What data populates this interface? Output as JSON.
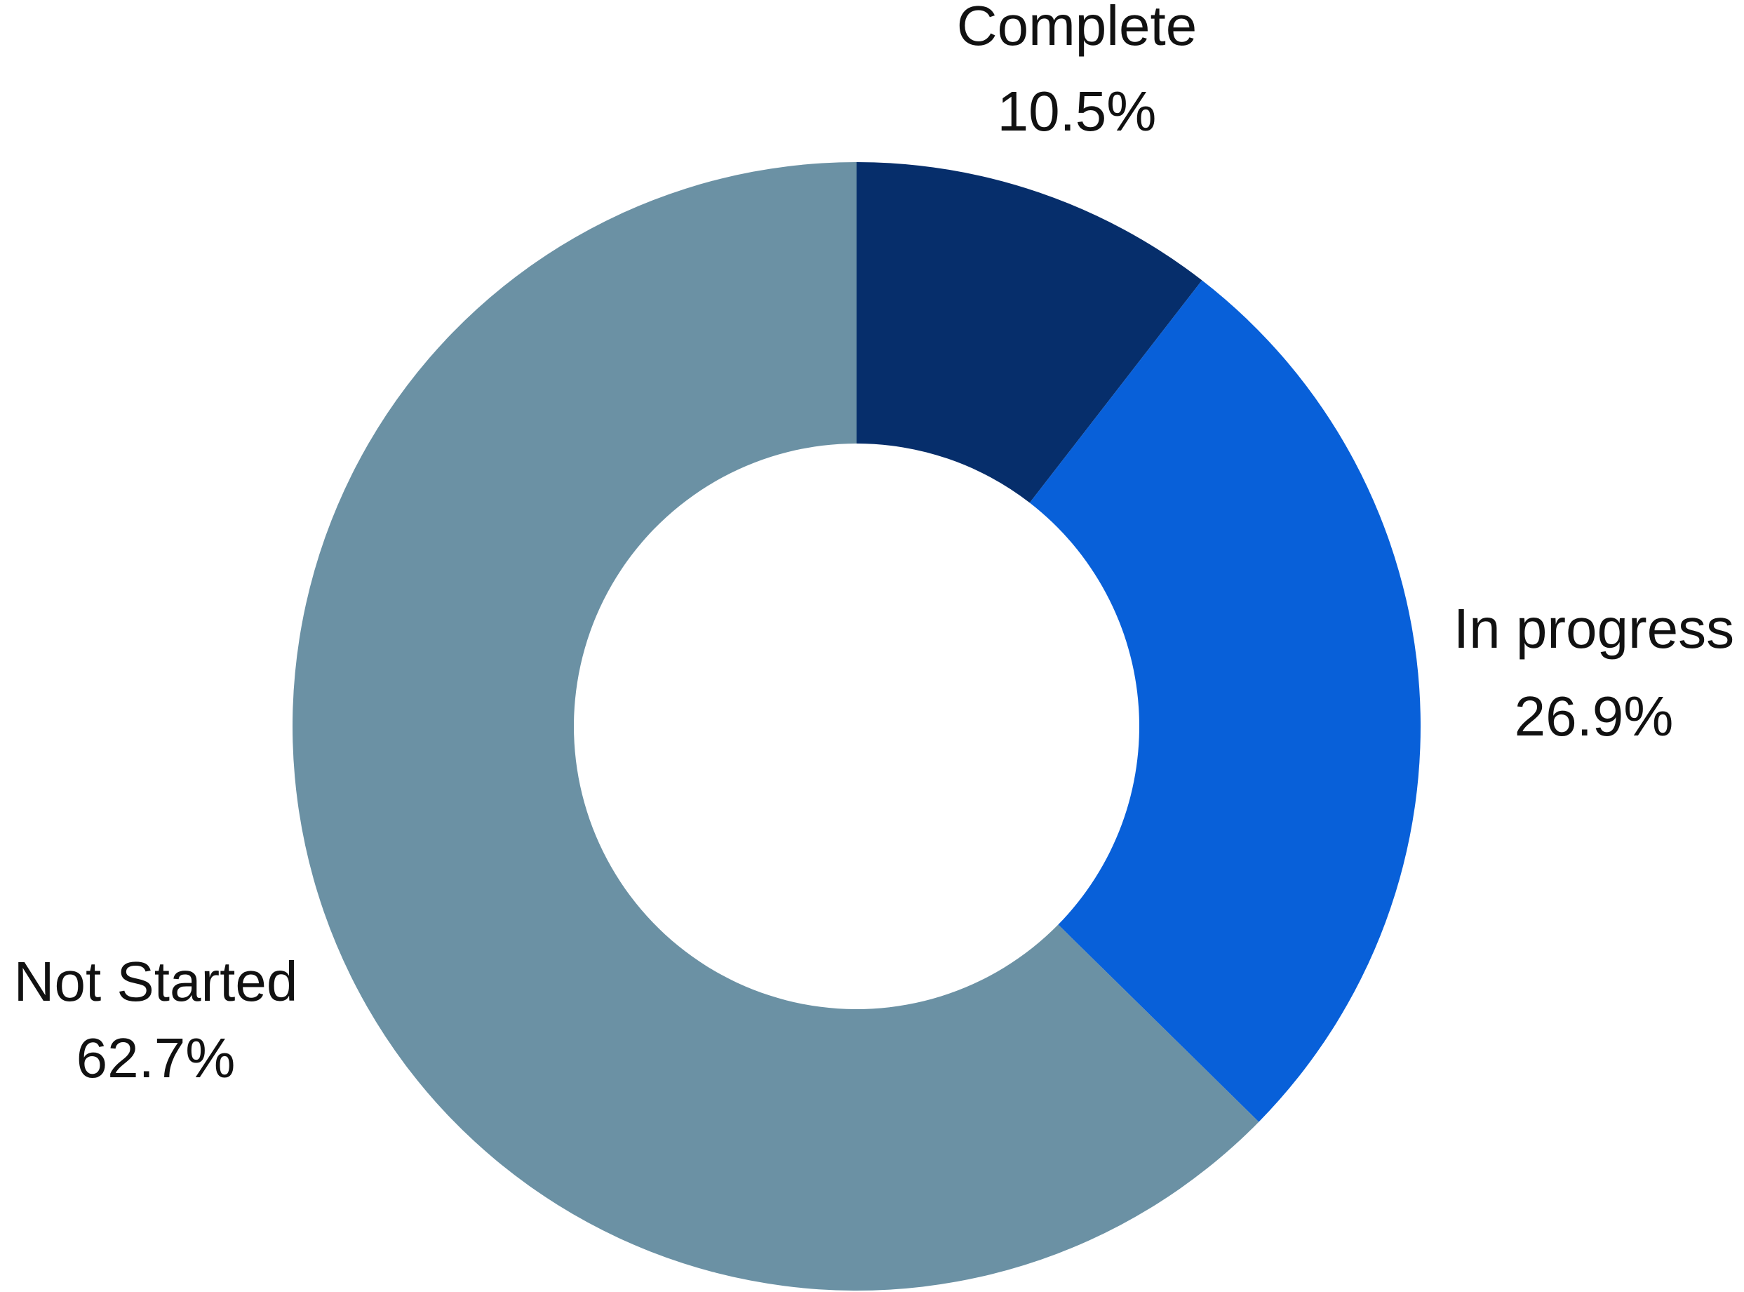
{
  "chart_data": {
    "type": "donut",
    "categories": [
      "Complete",
      "In progress",
      "Not Started"
    ],
    "values": [
      10.5,
      26.9,
      62.7
    ],
    "value_labels": [
      "10.5%",
      "26.9%",
      "62.7%"
    ],
    "colors": [
      "#062e6b",
      "#0860d9",
      "#6b91a4"
    ]
  }
}
